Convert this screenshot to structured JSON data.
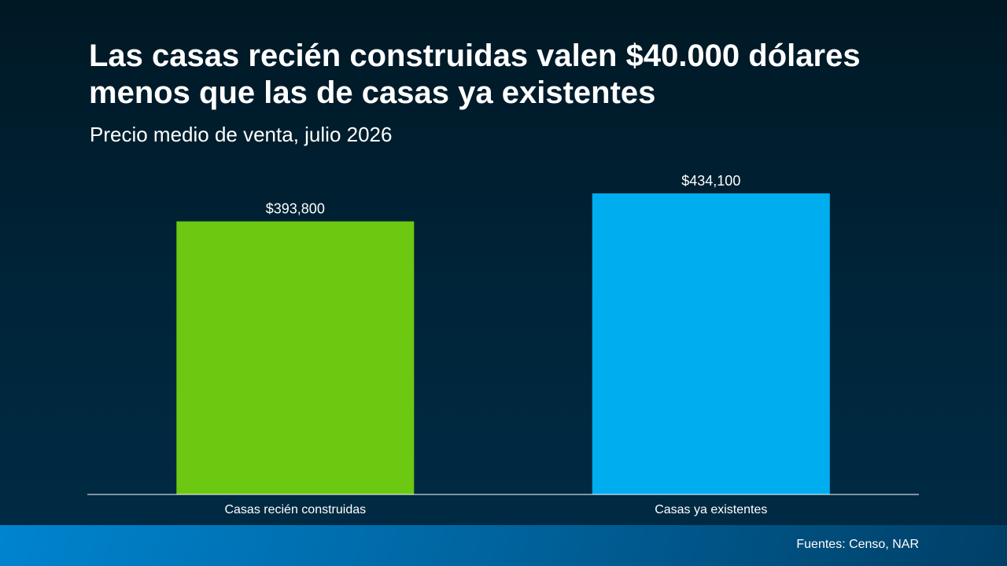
{
  "slide": {
    "title": "Las casas recién construidas valen $40.000 dólares\nmenos que las de casas ya existentes",
    "subtitle": "Precio medio de venta, julio 2026",
    "source": "Fuentes: Censo, NAR"
  },
  "chart_data": {
    "type": "bar",
    "title": "Las casas recién construidas valen $40.000 dólares menos que las de casas ya existentes",
    "subtitle": "Precio medio de venta, julio 2026",
    "xlabel": "",
    "ylabel": "",
    "categories": [
      "Casas recién construidas",
      "Casas ya existentes"
    ],
    "values": [
      393800,
      434100
    ],
    "data_labels": [
      "$393,800",
      "$434,100"
    ],
    "colors": [
      "#6cc811",
      "#00adef"
    ],
    "ylim": [
      0,
      450000
    ],
    "grid": false,
    "legend": "none"
  }
}
